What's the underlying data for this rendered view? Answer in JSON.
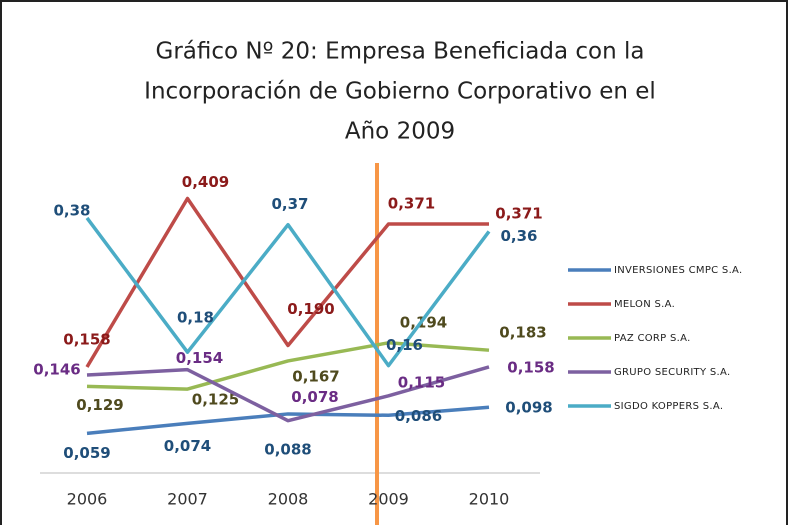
{
  "chart_data": {
    "type": "line",
    "title": [
      "Gráfico Nº 20: Empresa  Beneficiada con la",
      "Incorporación de Gobierno Corporativo en el",
      "Año 2009"
    ],
    "categories": [
      "2006",
      "2007",
      "2008",
      "2009",
      "2010"
    ],
    "ylim": [
      0,
      0.45
    ],
    "series": [
      {
        "name": "INVERSIONES CMPC S.A.",
        "color": "#4a7ebb",
        "label_color": "#1f4e79",
        "values": [
          0.059,
          0.074,
          0.088,
          0.086,
          0.098
        ],
        "value_labels": [
          "0,059",
          "0,074",
          "0,088",
          "0,086",
          "0,098"
        ]
      },
      {
        "name": "MELON S.A.",
        "color": "#be4b48",
        "label_color": "#8b1a1a",
        "values": [
          0.158,
          0.409,
          0.19,
          0.371,
          0.371
        ],
        "value_labels": [
          "0,158",
          "0,409",
          "0,190",
          "0,371",
          "0,371"
        ]
      },
      {
        "name": "PAZ CORP S.A.",
        "color": "#98b954",
        "label_color": "#4f4a1e",
        "values": [
          0.129,
          0.125,
          0.167,
          0.194,
          0.183
        ],
        "value_labels": [
          "0,129",
          "0,125",
          "0,167",
          "0,194",
          "0,183"
        ]
      },
      {
        "name": "GRUPO SECURITY S.A.",
        "color": "#7d60a0",
        "label_color": "#6a2c84",
        "values": [
          0.146,
          0.154,
          0.078,
          0.115,
          0.158
        ],
        "value_labels": [
          "0,146",
          "0,154",
          "0,078",
          "0,115",
          "0,158"
        ]
      },
      {
        "name": "SIGDO KOPPERS S.A.",
        "color": "#4bacc6",
        "label_color": "#1f4e79",
        "values": [
          0.38,
          0.18,
          0.37,
          0.16,
          0.36
        ],
        "value_labels": [
          "0,38",
          "0,18",
          "0,37",
          "0,16",
          "0,36"
        ]
      }
    ]
  }
}
